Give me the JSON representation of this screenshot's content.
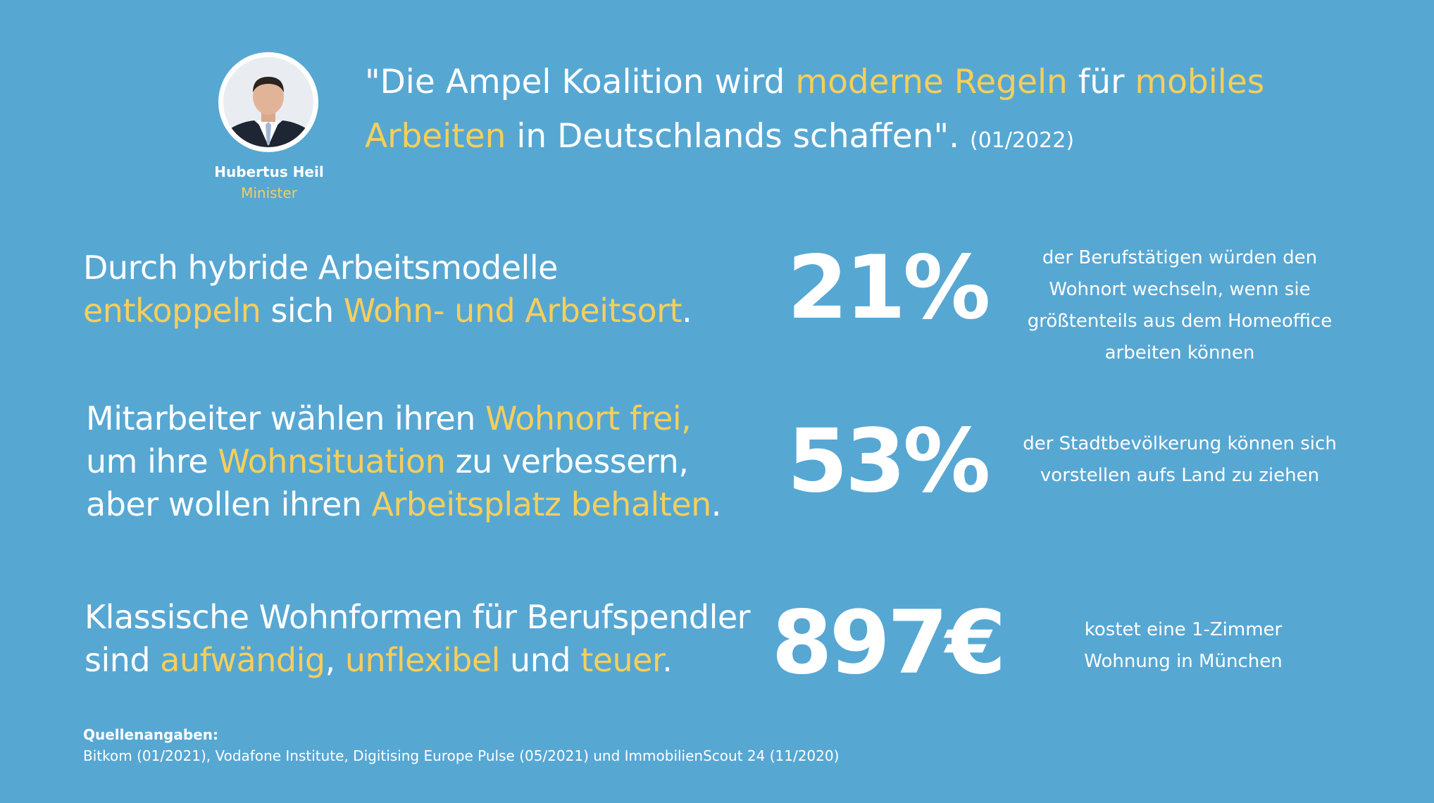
{
  "person": {
    "name": "Hubertus Heil",
    "role": "Minister"
  },
  "quote": {
    "part1": "\"Die Ampel Koalition wird ",
    "hl1": "moderne Regeln",
    "part2": " für ",
    "hl2": "mobiles Arbeiten",
    "part3": " in Deutschlands schaffen\".",
    "date": "(01/2022)"
  },
  "statements": [
    {
      "line1": "Durch hybride Arbeitsmodelle",
      "hl1": "entkoppeln",
      "t2": " sich ",
      "hl2": "Wohn- und Arbeitsort",
      "t3": "."
    },
    {
      "t1": "Mitarbeiter wählen ihren ",
      "hl1": "Wohnort frei,",
      "t2": "um ihre ",
      "hl2": "Wohnsituation",
      "t3": " zu verbessern,",
      "t4": "aber wollen ihren ",
      "hl3": "Arbeitsplatz behalten",
      "t5": "."
    },
    {
      "line1": "Klassische Wohnformen für Berufspendler",
      "t1": "sind ",
      "hl1": "aufwändig",
      "t2": ", ",
      "hl2": "unflexibel",
      "t3": " und ",
      "hl3": "teuer",
      "t4": "."
    }
  ],
  "stats": [
    {
      "value": "21%",
      "desc": [
        "der Berufstätigen würden den",
        "Wohnort wechseln, wenn sie",
        "größtenteils aus dem Homeoffice",
        "arbeiten können"
      ]
    },
    {
      "value": "53%",
      "desc": [
        "der Stadtbevölkerung können sich",
        "vorstellen aufs Land zu ziehen"
      ]
    },
    {
      "value": "897€",
      "desc": [
        "kostet eine 1-Zimmer",
        "Wohnung in München"
      ]
    }
  ],
  "sources": {
    "title": "Quellenangaben:",
    "text": "Bitkom (01/2021), Vodafone Institute, Digitising Europe Pulse (05/2021) und ImmobilienScout 24 (11/2020)"
  },
  "colors": {
    "background": "#57a7d3",
    "highlight": "#f6cf5a",
    "text": "#ffffff"
  }
}
